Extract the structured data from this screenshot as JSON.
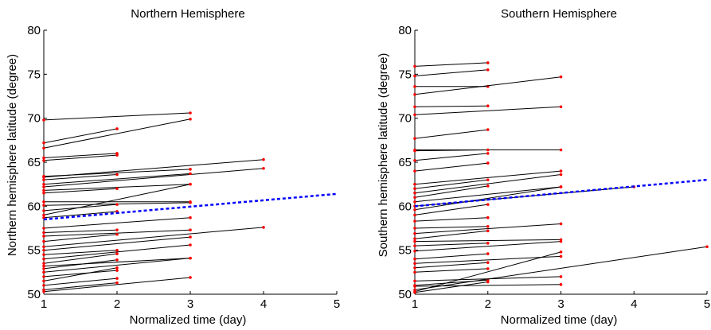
{
  "chart_data": [
    {
      "type": "line",
      "title": "Northern Hemisphere",
      "xlabel": "Normalized time (day)",
      "ylabel": "Northern hemisphere latitude (degree)",
      "xlim": [
        1,
        5
      ],
      "ylim": [
        50,
        80
      ],
      "xticks": [
        "1",
        "2",
        "3",
        "4",
        "5"
      ],
      "yticks": [
        "50",
        "55",
        "60",
        "65",
        "70",
        "75",
        "80"
      ],
      "grid": false,
      "line_color": "#000000",
      "marker_color": "#ff0000",
      "trend_color": "#0000ff",
      "trend": {
        "x": [
          1,
          5
        ],
        "y": [
          58.5,
          61.4
        ]
      },
      "series": [
        {
          "x": [
            1,
            3
          ],
          "y": [
            69.8,
            70.6
          ]
        },
        {
          "x": [
            1,
            3
          ],
          "y": [
            66.6,
            69.9
          ]
        },
        {
          "x": [
            1,
            2
          ],
          "y": [
            67.2,
            68.8
          ]
        },
        {
          "x": [
            1,
            2
          ],
          "y": [
            65.5,
            66.0
          ]
        },
        {
          "x": [
            1,
            2
          ],
          "y": [
            65.2,
            65.8
          ]
        },
        {
          "x": [
            1,
            4
          ],
          "y": [
            63.3,
            65.3
          ]
        },
        {
          "x": [
            1,
            3
          ],
          "y": [
            63.4,
            64.2
          ]
        },
        {
          "x": [
            1,
            4
          ],
          "y": [
            62.2,
            64.3
          ]
        },
        {
          "x": [
            1,
            2
          ],
          "y": [
            63.0,
            63.6
          ]
        },
        {
          "x": [
            1,
            3
          ],
          "y": [
            62.5,
            63.7
          ]
        },
        {
          "x": [
            1,
            3
          ],
          "y": [
            61.8,
            62.5
          ]
        },
        {
          "x": [
            1,
            2
          ],
          "y": [
            61.5,
            62.0
          ]
        },
        {
          "x": [
            1,
            3
          ],
          "y": [
            60.5,
            60.5
          ]
        },
        {
          "x": [
            1,
            3
          ],
          "y": [
            60.1,
            60.4
          ]
        },
        {
          "x": [
            1,
            2
          ],
          "y": [
            59.5,
            60.2
          ]
        },
        {
          "x": [
            1,
            3
          ],
          "y": [
            59.0,
            62.5
          ]
        },
        {
          "x": [
            1,
            2
          ],
          "y": [
            58.7,
            59.4
          ]
        },
        {
          "x": [
            1,
            3
          ],
          "y": [
            57.5,
            58.7
          ]
        },
        {
          "x": [
            1,
            2
          ],
          "y": [
            57.0,
            57.3
          ]
        },
        {
          "x": [
            1,
            3
          ],
          "y": [
            56.6,
            57.3
          ]
        },
        {
          "x": [
            1,
            2
          ],
          "y": [
            56.0,
            56.8
          ]
        },
        {
          "x": [
            1,
            4
          ],
          "y": [
            55.4,
            57.6
          ]
        },
        {
          "x": [
            1,
            3
          ],
          "y": [
            55.0,
            56.5
          ]
        },
        {
          "x": [
            1,
            2
          ],
          "y": [
            54.5,
            55.0
          ]
        },
        {
          "x": [
            1,
            3
          ],
          "y": [
            54.0,
            55.6
          ]
        },
        {
          "x": [
            1,
            2
          ],
          "y": [
            53.5,
            54.6
          ]
        },
        {
          "x": [
            1,
            3
          ],
          "y": [
            53.2,
            54.1
          ]
        },
        {
          "x": [
            1,
            2
          ],
          "y": [
            52.9,
            53.9
          ]
        },
        {
          "x": [
            1,
            3
          ],
          "y": [
            52.5,
            54.1
          ]
        },
        {
          "x": [
            1,
            2
          ],
          "y": [
            52.0,
            52.7
          ]
        },
        {
          "x": [
            1,
            2
          ],
          "y": [
            51.5,
            53.0
          ]
        },
        {
          "x": [
            1,
            2
          ],
          "y": [
            51.0,
            51.8
          ]
        },
        {
          "x": [
            1,
            3
          ],
          "y": [
            50.3,
            51.9
          ]
        },
        {
          "x": [
            1,
            2
          ],
          "y": [
            50.5,
            51.3
          ]
        }
      ]
    },
    {
      "type": "line",
      "title": "Southern Hemisphere",
      "xlabel": "Normalized time (day)",
      "ylabel": "Southern hemisphere latitude (degree)",
      "xlim": [
        1,
        5
      ],
      "ylim": [
        50,
        80
      ],
      "xticks": [
        "1",
        "2",
        "3",
        "4",
        "5"
      ],
      "yticks": [
        "50",
        "55",
        "60",
        "65",
        "70",
        "75",
        "80"
      ],
      "grid": false,
      "line_color": "#000000",
      "marker_color": "#ff0000",
      "trend_color": "#0000ff",
      "trend": {
        "x": [
          1,
          5
        ],
        "y": [
          60.0,
          63.0
        ]
      },
      "series": [
        {
          "x": [
            1,
            2
          ],
          "y": [
            75.9,
            76.3
          ]
        },
        {
          "x": [
            1,
            2
          ],
          "y": [
            74.8,
            75.5
          ]
        },
        {
          "x": [
            1,
            2
          ],
          "y": [
            73.6,
            73.6
          ]
        },
        {
          "x": [
            1,
            3
          ],
          "y": [
            72.7,
            74.7
          ]
        },
        {
          "x": [
            1,
            2
          ],
          "y": [
            71.3,
            71.4
          ]
        },
        {
          "x": [
            1,
            3
          ],
          "y": [
            70.4,
            71.3
          ]
        },
        {
          "x": [
            1,
            2
          ],
          "y": [
            67.7,
            68.7
          ]
        },
        {
          "x": [
            1,
            3
          ],
          "y": [
            66.4,
            66.4
          ]
        },
        {
          "x": [
            1,
            2
          ],
          "y": [
            66.3,
            66.4
          ]
        },
        {
          "x": [
            1,
            2
          ],
          "y": [
            65.2,
            66.0
          ]
        },
        {
          "x": [
            1,
            2
          ],
          "y": [
            64.0,
            64.9
          ]
        },
        {
          "x": [
            1,
            3
          ],
          "y": [
            62.5,
            64.0
          ]
        },
        {
          "x": [
            1,
            2
          ],
          "y": [
            62.0,
            63.0
          ]
        },
        {
          "x": [
            1,
            3
          ],
          "y": [
            61.5,
            63.6
          ]
        },
        {
          "x": [
            1,
            2
          ],
          "y": [
            61.0,
            62.3
          ]
        },
        {
          "x": [
            1,
            3
          ],
          "y": [
            60.5,
            62.2
          ]
        },
        {
          "x": [
            1,
            4
          ],
          "y": [
            60.0,
            62.2
          ]
        },
        {
          "x": [
            1,
            3
          ],
          "y": [
            59.6,
            62.2
          ]
        },
        {
          "x": [
            1,
            2
          ],
          "y": [
            59.0,
            60.2
          ]
        },
        {
          "x": [
            1,
            2
          ],
          "y": [
            58.3,
            58.7
          ]
        },
        {
          "x": [
            1,
            2
          ],
          "y": [
            57.5,
            57.7
          ]
        },
        {
          "x": [
            1,
            3
          ],
          "y": [
            56.9,
            58.0
          ]
        },
        {
          "x": [
            1,
            2
          ],
          "y": [
            56.3,
            57.2
          ]
        },
        {
          "x": [
            1,
            3
          ],
          "y": [
            56.0,
            56.2
          ]
        },
        {
          "x": [
            1,
            2
          ],
          "y": [
            55.5,
            55.8
          ]
        },
        {
          "x": [
            1,
            3
          ],
          "y": [
            54.9,
            56.0
          ]
        },
        {
          "x": [
            1,
            2
          ],
          "y": [
            54.0,
            54.6
          ]
        },
        {
          "x": [
            1,
            3
          ],
          "y": [
            53.5,
            54.3
          ]
        },
        {
          "x": [
            1,
            2
          ],
          "y": [
            53.0,
            53.6
          ]
        },
        {
          "x": [
            1,
            2
          ],
          "y": [
            52.5,
            52.9
          ]
        },
        {
          "x": [
            1,
            3
          ],
          "y": [
            51.5,
            52.0
          ]
        },
        {
          "x": [
            1,
            2
          ],
          "y": [
            51.0,
            51.6
          ]
        },
        {
          "x": [
            1,
            3
          ],
          "y": [
            50.9,
            51.1
          ]
        },
        {
          "x": [
            1,
            5
          ],
          "y": [
            50.5,
            55.4
          ]
        },
        {
          "x": [
            1,
            3
          ],
          "y": [
            50.3,
            54.8
          ]
        },
        {
          "x": [
            1,
            2
          ],
          "y": [
            50.2,
            51.4
          ]
        }
      ]
    }
  ]
}
